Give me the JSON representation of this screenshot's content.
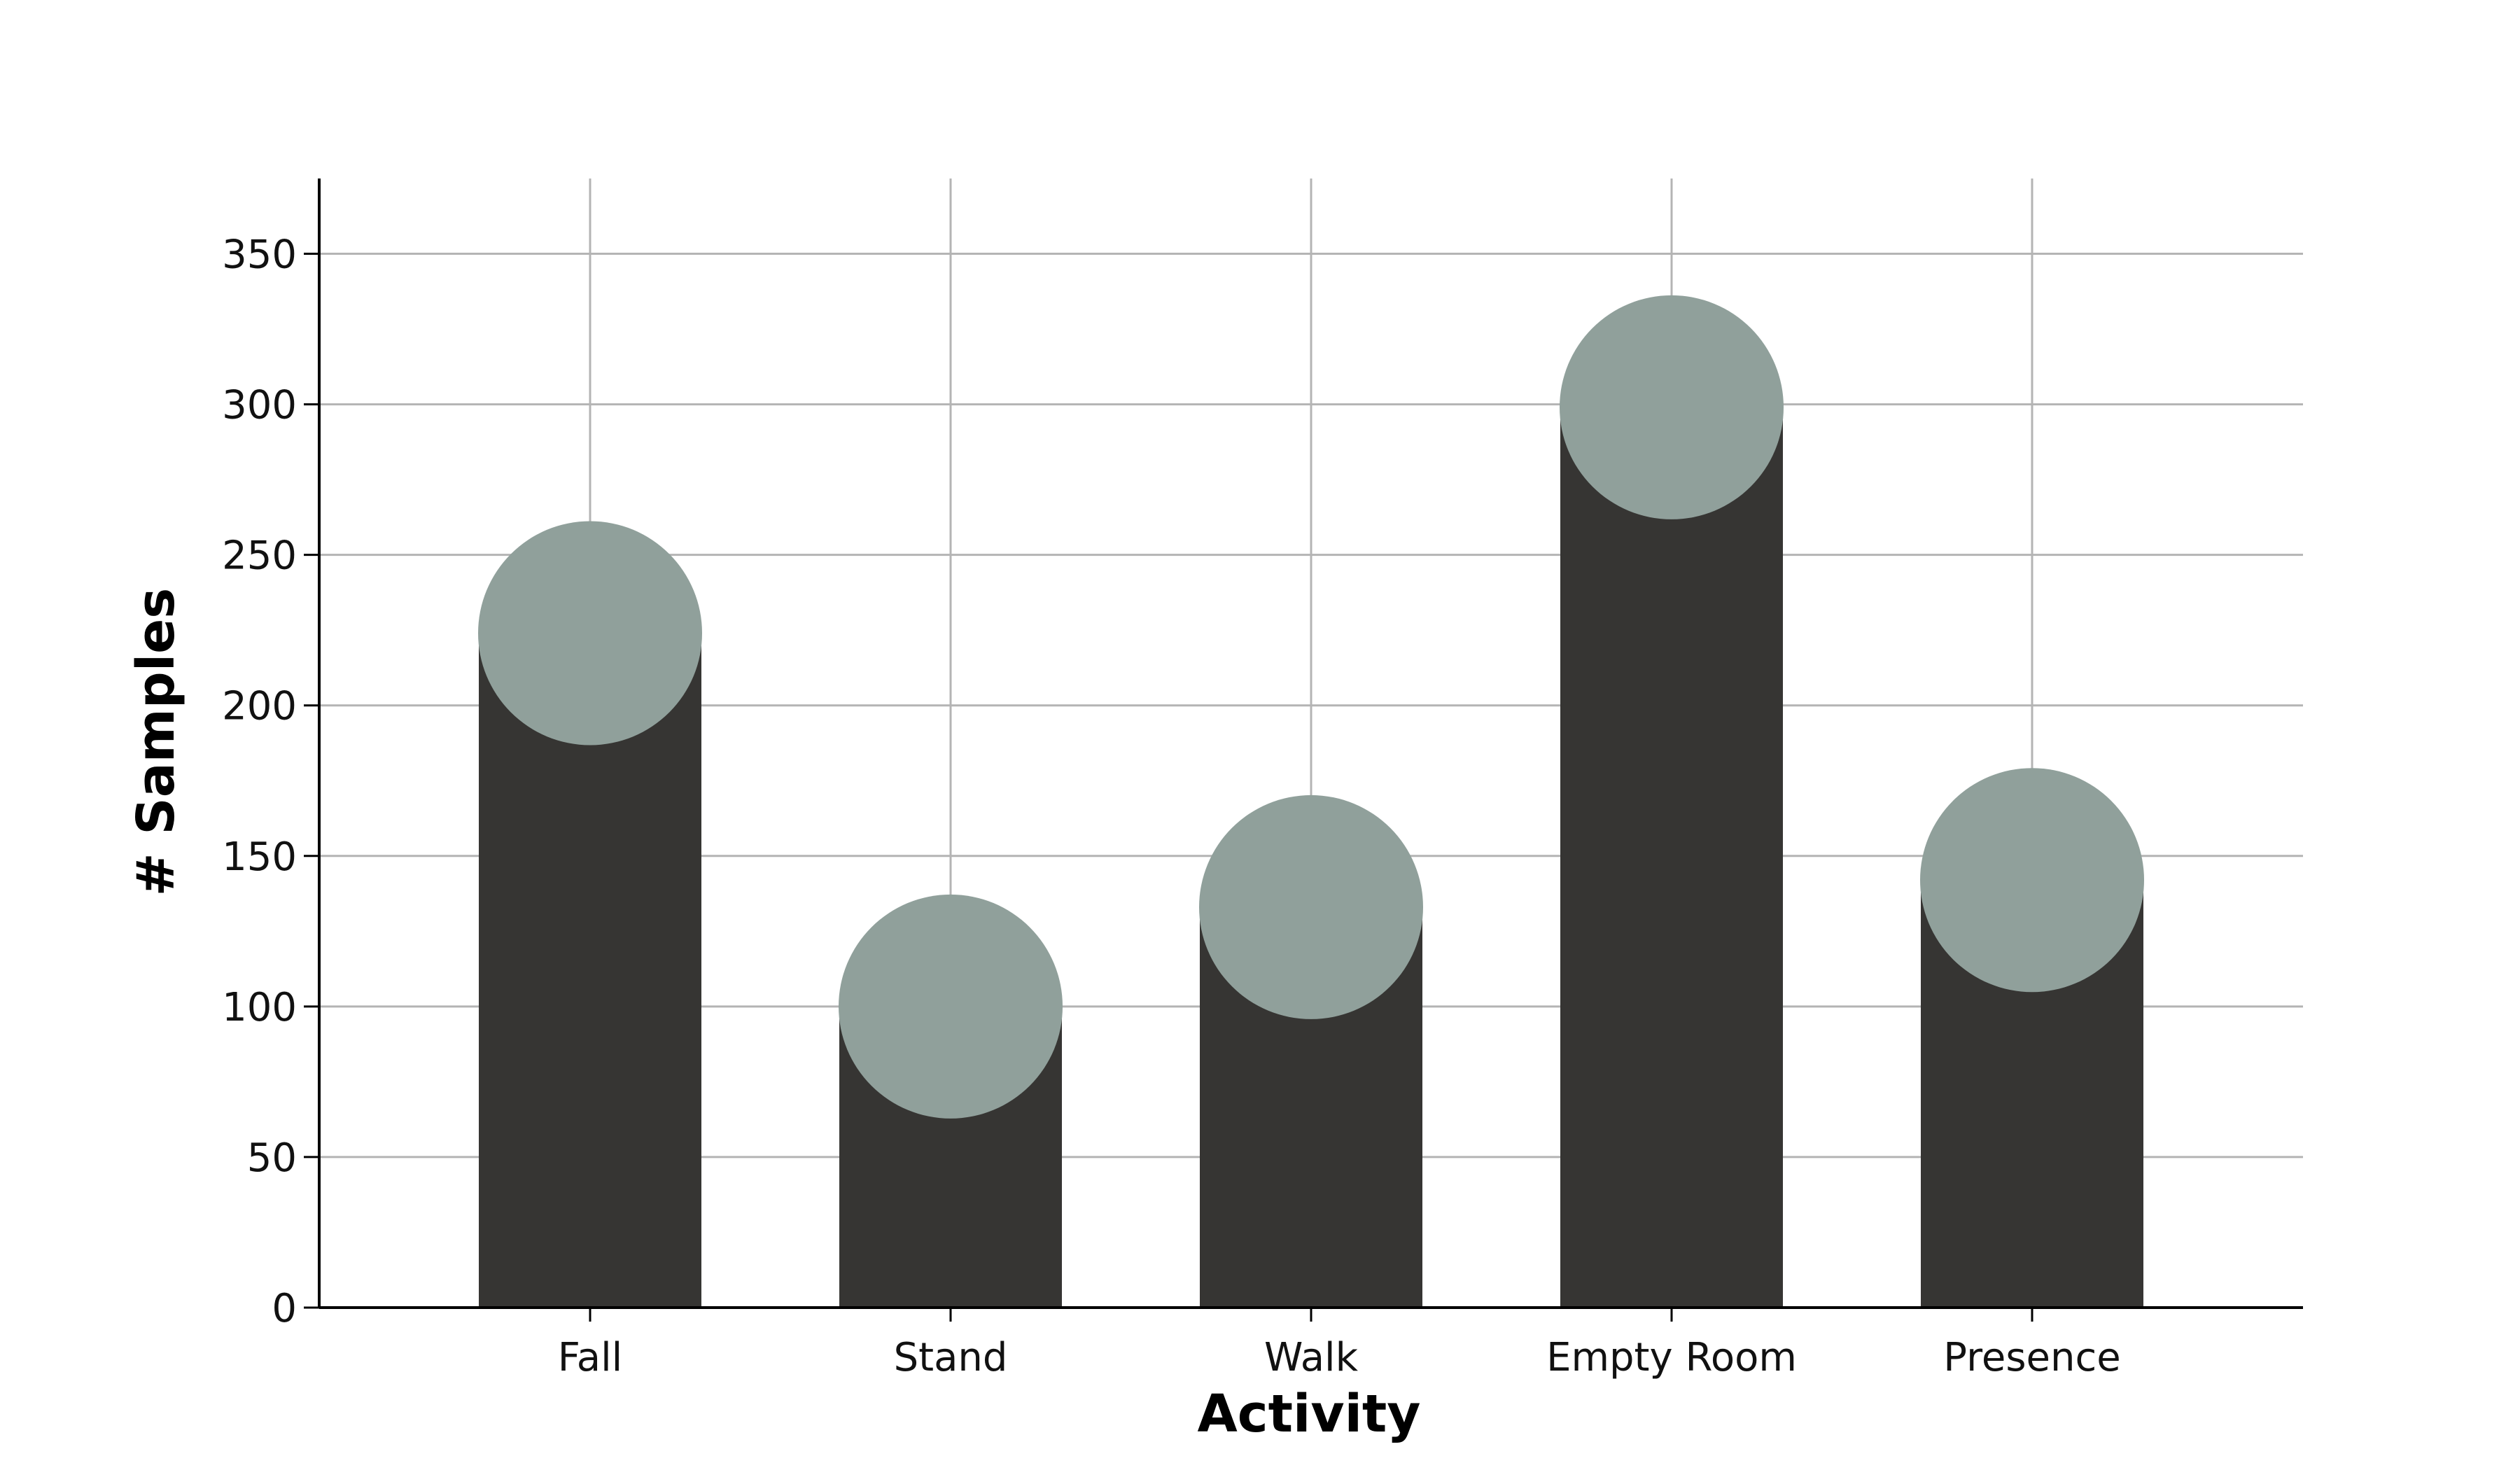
{
  "chart_data": {
    "type": "bar",
    "categories": [
      "Fall",
      "Stand",
      "Walk",
      "Empty Room",
      "Presence"
    ],
    "values": [
      224,
      100,
      133,
      299,
      142
    ],
    "xlabel": "Activity",
    "ylabel": "# Samples",
    "ylim": [
      0,
      375
    ],
    "yticks": [
      0,
      50,
      100,
      150,
      200,
      250,
      300,
      350
    ],
    "grid": true,
    "marker": "circle at bar top",
    "legend": "none"
  },
  "colors": {
    "bar": "#363533",
    "marker": "#90a09b",
    "grid": "#b4b4b4",
    "axis": "#000000"
  }
}
